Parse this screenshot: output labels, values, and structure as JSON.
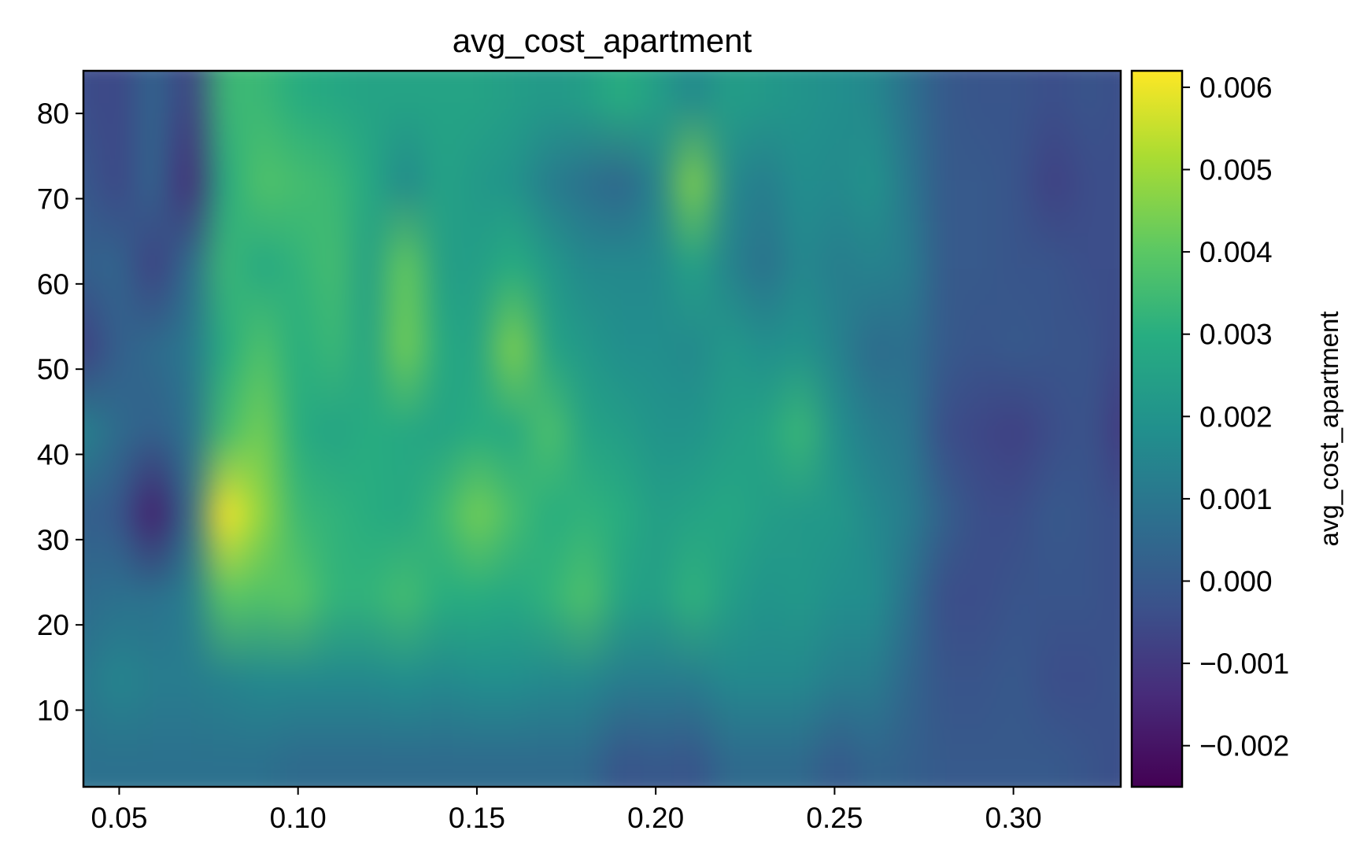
{
  "chart_data": {
    "type": "heatmap",
    "title": "avg_cost_apartment",
    "xlabel": "",
    "ylabel": "",
    "colorbar_label": "avg_cost_apartment",
    "colormap": "viridis",
    "interpolation": "smooth",
    "xlim": [
      0.04,
      0.33
    ],
    "ylim": [
      1,
      85
    ],
    "vlim": [
      -0.0025,
      0.0062
    ],
    "x_ticks": [
      0.05,
      0.1,
      0.15,
      0.2,
      0.25,
      0.3
    ],
    "x_tick_labels": [
      "0.05",
      "0.10",
      "0.15",
      "0.20",
      "0.25",
      "0.30"
    ],
    "y_ticks": [
      10,
      20,
      30,
      40,
      50,
      60,
      70,
      80
    ],
    "y_tick_labels": [
      "10",
      "20",
      "30",
      "40",
      "50",
      "60",
      "70",
      "80"
    ],
    "colorbar_ticks": [
      -0.002,
      -0.001,
      0.0,
      0.001,
      0.002,
      0.003,
      0.004,
      0.005,
      0.006
    ],
    "colorbar_tick_labels": [
      "−0.002",
      "−0.001",
      "0.000",
      "0.001",
      "0.002",
      "0.003",
      "0.004",
      "0.005",
      "0.006"
    ],
    "x": [
      0.04,
      0.05,
      0.06,
      0.07,
      0.08,
      0.09,
      0.1,
      0.11,
      0.12,
      0.13,
      0.14,
      0.15,
      0.16,
      0.17,
      0.18,
      0.19,
      0.2,
      0.21,
      0.22,
      0.23,
      0.24,
      0.25,
      0.26,
      0.27,
      0.28,
      0.29,
      0.3,
      0.31,
      0.32,
      0.33
    ],
    "y": [
      5,
      15,
      25,
      35,
      45,
      55,
      65,
      75,
      85
    ],
    "values": [
      [
        0.0008,
        0.0008,
        0.0008,
        0.0008,
        0.0008,
        0.0008,
        0.0006,
        0.0006,
        0.0006,
        0.0006,
        0.0006,
        0.0006,
        0.0006,
        0.0006,
        0.0006,
        -0.0002,
        0.0,
        -0.0002,
        0.0006,
        0.0006,
        0.0006,
        0.0,
        0.0004,
        0.0002,
        0.0,
        0.0,
        0.0,
        0.0,
        -0.0002,
        -0.0004
      ],
      [
        0.001,
        0.0015,
        0.0012,
        0.0012,
        0.0014,
        0.0016,
        0.0016,
        0.0016,
        0.0016,
        0.0018,
        0.0016,
        0.0018,
        0.0018,
        0.0016,
        0.0016,
        0.0012,
        0.0012,
        0.0012,
        0.0016,
        0.0016,
        0.0016,
        0.0012,
        0.0012,
        0.0004,
        -0.0002,
        -0.0002,
        0.0,
        -0.0004,
        -0.0004,
        -0.0002
      ],
      [
        0.0006,
        0.0008,
        0.0008,
        0.0012,
        0.004,
        0.0038,
        0.004,
        0.0032,
        0.0032,
        0.0036,
        0.003,
        0.003,
        0.0028,
        0.0032,
        0.0038,
        0.0026,
        0.0024,
        0.0032,
        0.0024,
        0.002,
        0.0022,
        0.0018,
        0.0018,
        0.0008,
        -0.0004,
        -0.0004,
        -0.0002,
        -0.0002,
        -0.0002,
        -0.0004
      ],
      [
        0.0002,
        0.0,
        -0.0018,
        0.0006,
        0.0062,
        0.0048,
        0.0034,
        0.0032,
        0.003,
        0.0028,
        0.0034,
        0.0044,
        0.0036,
        0.003,
        0.0032,
        0.003,
        0.0024,
        0.0026,
        0.0028,
        0.0024,
        0.0022,
        0.0022,
        0.0016,
        0.0012,
        0.0002,
        -0.0004,
        -0.0004,
        0.0,
        -0.0002,
        -0.0004
      ],
      [
        0.0014,
        0.0006,
        0.0002,
        0.0008,
        0.0036,
        0.0044,
        0.003,
        0.0026,
        0.003,
        0.0028,
        0.0026,
        0.003,
        0.0028,
        0.0038,
        0.0026,
        0.0024,
        0.002,
        0.002,
        0.0024,
        0.0026,
        0.0034,
        0.0018,
        0.0012,
        0.001,
        -0.0004,
        -0.0006,
        -0.0008,
        -0.0004,
        -0.0002,
        -0.001
      ],
      [
        -0.0008,
        0.0002,
        0.0006,
        0.001,
        0.003,
        0.0038,
        0.003,
        0.0034,
        0.0026,
        0.0044,
        0.0028,
        0.0026,
        0.0046,
        0.0026,
        0.0022,
        0.0018,
        0.0018,
        0.0016,
        0.0022,
        0.0018,
        0.002,
        0.0014,
        0.0006,
        0.0008,
        0.0,
        -0.0002,
        0.0,
        -0.0002,
        -0.0002,
        -0.0006
      ],
      [
        0.0002,
        0.0004,
        -0.0008,
        0.0006,
        0.0034,
        0.0028,
        0.0032,
        0.0036,
        0.0024,
        0.0042,
        0.0024,
        0.0024,
        0.003,
        0.0022,
        0.0016,
        0.0016,
        0.0016,
        0.0026,
        0.0014,
        0.0008,
        0.0016,
        0.0012,
        0.0014,
        0.0012,
        0.0,
        0.0,
        -0.0002,
        -0.0002,
        -0.0004,
        -0.0004
      ],
      [
        0.0,
        -0.0006,
        0.0004,
        -0.0014,
        0.003,
        0.0038,
        0.0036,
        0.0034,
        0.0028,
        0.0016,
        0.0026,
        0.0022,
        0.002,
        0.0012,
        0.0008,
        0.0004,
        0.0014,
        0.0046,
        0.0016,
        0.0012,
        0.0018,
        0.0016,
        0.002,
        0.001,
        0.0,
        0.0,
        -0.0002,
        -0.0008,
        -0.0004,
        -0.0004
      ],
      [
        -0.0004,
        -0.0006,
        0.0004,
        -0.0008,
        0.0034,
        0.0034,
        0.003,
        0.0028,
        0.0026,
        0.0026,
        0.0026,
        0.0026,
        0.0024,
        0.0022,
        0.0024,
        0.003,
        0.0024,
        0.0016,
        0.0024,
        0.0022,
        0.002,
        0.0018,
        0.0016,
        0.0008,
        0.0,
        -0.0002,
        -0.0002,
        -0.0004,
        -0.0002,
        -0.0004
      ]
    ]
  }
}
